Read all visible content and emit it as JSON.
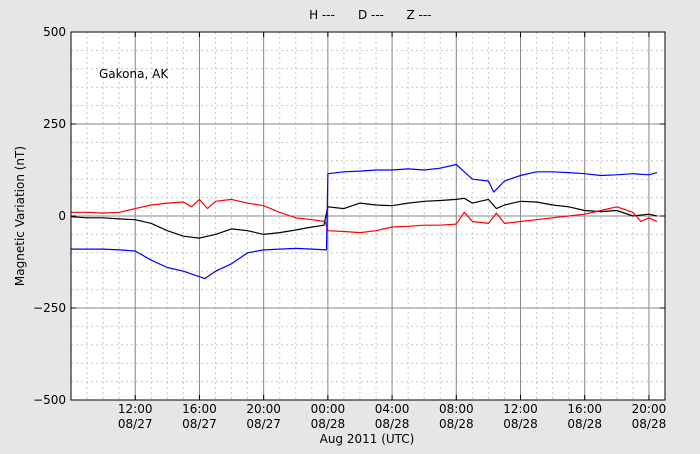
{
  "chart_data": {
    "type": "line",
    "legend": [
      "H ---",
      "D ---",
      "Z ---"
    ],
    "legend_placement": "top-center",
    "annotation": "Gakona, AK",
    "xlabel": "Aug 2011 (UTC)",
    "ylabel": "Magnetic Variation (nT)",
    "ylim": [
      -500,
      500
    ],
    "y_ticks": [
      -500,
      -250,
      0,
      250,
      500
    ],
    "y_tick_labels": [
      "−500",
      "−250",
      "0",
      "250",
      "500"
    ],
    "xlim": [
      "2011-08-27 08:00",
      "2011-08-28 21:00"
    ],
    "x_ticks": [
      {
        "x": "2011-08-27 12:00",
        "time": "12:00",
        "date": "08/27"
      },
      {
        "x": "2011-08-27 16:00",
        "time": "16:00",
        "date": "08/27"
      },
      {
        "x": "2011-08-27 20:00",
        "time": "20:00",
        "date": "08/27"
      },
      {
        "x": "2011-08-28 00:00",
        "time": "00:00",
        "date": "08/28"
      },
      {
        "x": "2011-08-28 04:00",
        "time": "04:00",
        "date": "08/28"
      },
      {
        "x": "2011-08-28 08:00",
        "time": "08:00",
        "date": "08/28"
      },
      {
        "x": "2011-08-28 12:00",
        "time": "12:00",
        "date": "08/28"
      },
      {
        "x": "2011-08-28 16:00",
        "time": "16:00",
        "date": "08/28"
      },
      {
        "x": "2011-08-28 20:00",
        "time": "20:00",
        "date": "08/28"
      }
    ],
    "grid": true,
    "series": [
      {
        "name": "H",
        "color": "#000000",
        "points": [
          [
            "2011-08-27 08:00",
            -2
          ],
          [
            "2011-08-27 09:00",
            -5
          ],
          [
            "2011-08-27 10:00",
            -5
          ],
          [
            "2011-08-27 11:00",
            -8
          ],
          [
            "2011-08-27 12:00",
            -10
          ],
          [
            "2011-08-27 13:00",
            -20
          ],
          [
            "2011-08-27 14:00",
            -40
          ],
          [
            "2011-08-27 15:00",
            -55
          ],
          [
            "2011-08-27 16:00",
            -60
          ],
          [
            "2011-08-27 17:00",
            -50
          ],
          [
            "2011-08-27 18:00",
            -35
          ],
          [
            "2011-08-27 19:00",
            -40
          ],
          [
            "2011-08-27 20:00",
            -50
          ],
          [
            "2011-08-27 21:00",
            -45
          ],
          [
            "2011-08-27 22:00",
            -38
          ],
          [
            "2011-08-27 23:00",
            -30
          ],
          [
            "2011-08-27 23:45",
            -25
          ],
          [
            "2011-08-28 00:00",
            25
          ],
          [
            "2011-08-28 01:00",
            20
          ],
          [
            "2011-08-28 02:00",
            35
          ],
          [
            "2011-08-28 03:00",
            30
          ],
          [
            "2011-08-28 04:00",
            28
          ],
          [
            "2011-08-28 05:00",
            35
          ],
          [
            "2011-08-28 06:00",
            40
          ],
          [
            "2011-08-28 07:00",
            42
          ],
          [
            "2011-08-28 08:00",
            45
          ],
          [
            "2011-08-28 08:30",
            48
          ],
          [
            "2011-08-28 09:00",
            35
          ],
          [
            "2011-08-28 10:00",
            45
          ],
          [
            "2011-08-28 10:30",
            20
          ],
          [
            "2011-08-28 11:00",
            30
          ],
          [
            "2011-08-28 12:00",
            40
          ],
          [
            "2011-08-28 13:00",
            38
          ],
          [
            "2011-08-28 14:00",
            30
          ],
          [
            "2011-08-28 15:00",
            25
          ],
          [
            "2011-08-28 16:00",
            15
          ],
          [
            "2011-08-28 17:00",
            12
          ],
          [
            "2011-08-28 18:00",
            15
          ],
          [
            "2011-08-28 19:00",
            0
          ],
          [
            "2011-08-28 20:00",
            5
          ],
          [
            "2011-08-28 20:30",
            0
          ]
        ]
      },
      {
        "name": "D",
        "color": "#ff0000",
        "points": [
          [
            "2011-08-27 08:00",
            10
          ],
          [
            "2011-08-27 09:00",
            10
          ],
          [
            "2011-08-27 10:00",
            8
          ],
          [
            "2011-08-27 11:00",
            10
          ],
          [
            "2011-08-27 12:00",
            20
          ],
          [
            "2011-08-27 13:00",
            30
          ],
          [
            "2011-08-27 14:00",
            35
          ],
          [
            "2011-08-27 15:00",
            38
          ],
          [
            "2011-08-27 15:30",
            25
          ],
          [
            "2011-08-27 16:00",
            45
          ],
          [
            "2011-08-27 16:30",
            20
          ],
          [
            "2011-08-27 17:00",
            40
          ],
          [
            "2011-08-27 18:00",
            45
          ],
          [
            "2011-08-27 19:00",
            35
          ],
          [
            "2011-08-27 20:00",
            28
          ],
          [
            "2011-08-27 21:00",
            10
          ],
          [
            "2011-08-27 22:00",
            -5
          ],
          [
            "2011-08-27 23:00",
            -10
          ],
          [
            "2011-08-27 23:50",
            -15
          ],
          [
            "2011-08-28 00:00",
            -40
          ],
          [
            "2011-08-28 01:00",
            -42
          ],
          [
            "2011-08-28 02:00",
            -45
          ],
          [
            "2011-08-28 03:00",
            -40
          ],
          [
            "2011-08-28 04:00",
            -30
          ],
          [
            "2011-08-28 05:00",
            -28
          ],
          [
            "2011-08-28 06:00",
            -25
          ],
          [
            "2011-08-28 07:00",
            -25
          ],
          [
            "2011-08-28 08:00",
            -22
          ],
          [
            "2011-08-28 08:30",
            10
          ],
          [
            "2011-08-28 09:00",
            -15
          ],
          [
            "2011-08-28 10:00",
            -20
          ],
          [
            "2011-08-28 10:30",
            8
          ],
          [
            "2011-08-28 11:00",
            -20
          ],
          [
            "2011-08-28 12:00",
            -15
          ],
          [
            "2011-08-28 13:00",
            -10
          ],
          [
            "2011-08-28 14:00",
            -5
          ],
          [
            "2011-08-28 15:00",
            0
          ],
          [
            "2011-08-28 16:00",
            5
          ],
          [
            "2011-08-28 17:00",
            15
          ],
          [
            "2011-08-28 18:00",
            25
          ],
          [
            "2011-08-28 19:00",
            10
          ],
          [
            "2011-08-28 19:30",
            -15
          ],
          [
            "2011-08-28 20:00",
            -5
          ],
          [
            "2011-08-28 20:30",
            -15
          ]
        ]
      },
      {
        "name": "Z",
        "color": "#0000ff",
        "points": [
          [
            "2011-08-27 08:00",
            -90
          ],
          [
            "2011-08-27 09:00",
            -90
          ],
          [
            "2011-08-27 10:00",
            -90
          ],
          [
            "2011-08-27 11:00",
            -92
          ],
          [
            "2011-08-27 12:00",
            -95
          ],
          [
            "2011-08-27 13:00",
            -120
          ],
          [
            "2011-08-27 14:00",
            -140
          ],
          [
            "2011-08-27 15:00",
            -150
          ],
          [
            "2011-08-27 16:00",
            -165
          ],
          [
            "2011-08-27 16:20",
            -170
          ],
          [
            "2011-08-27 17:00",
            -150
          ],
          [
            "2011-08-27 18:00",
            -130
          ],
          [
            "2011-08-27 19:00",
            -100
          ],
          [
            "2011-08-27 20:00",
            -92
          ],
          [
            "2011-08-27 21:00",
            -90
          ],
          [
            "2011-08-27 22:00",
            -88
          ],
          [
            "2011-08-27 23:00",
            -90
          ],
          [
            "2011-08-27 23:55",
            -92
          ],
          [
            "2011-08-28 00:00",
            115
          ],
          [
            "2011-08-28 01:00",
            120
          ],
          [
            "2011-08-28 02:00",
            122
          ],
          [
            "2011-08-28 03:00",
            125
          ],
          [
            "2011-08-28 04:00",
            125
          ],
          [
            "2011-08-28 05:00",
            128
          ],
          [
            "2011-08-28 06:00",
            125
          ],
          [
            "2011-08-28 07:00",
            130
          ],
          [
            "2011-08-28 08:00",
            140
          ],
          [
            "2011-08-28 08:30",
            120
          ],
          [
            "2011-08-28 09:00",
            100
          ],
          [
            "2011-08-28 10:00",
            95
          ],
          [
            "2011-08-28 10:20",
            65
          ],
          [
            "2011-08-28 11:00",
            95
          ],
          [
            "2011-08-28 12:00",
            110
          ],
          [
            "2011-08-28 13:00",
            120
          ],
          [
            "2011-08-28 14:00",
            120
          ],
          [
            "2011-08-28 15:00",
            118
          ],
          [
            "2011-08-28 16:00",
            115
          ],
          [
            "2011-08-28 17:00",
            110
          ],
          [
            "2011-08-28 18:00",
            112
          ],
          [
            "2011-08-28 19:00",
            115
          ],
          [
            "2011-08-28 20:00",
            112
          ],
          [
            "2011-08-28 20:30",
            118
          ]
        ]
      }
    ]
  }
}
